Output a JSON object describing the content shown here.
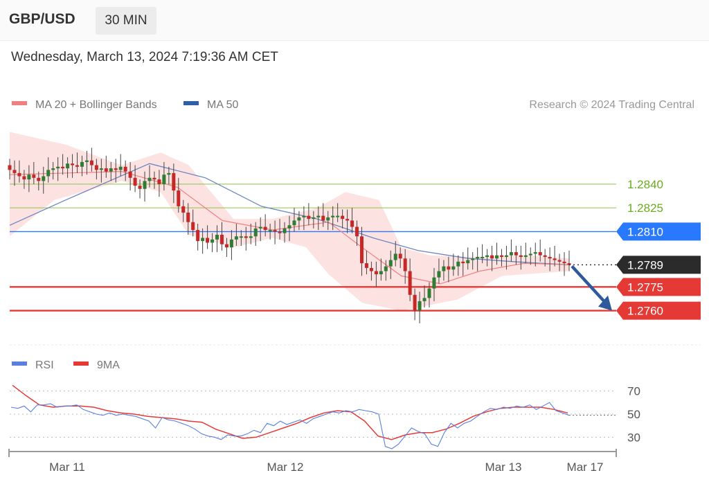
{
  "header": {
    "symbol": "GBP/USD",
    "timeframe": "30 MIN"
  },
  "date_line": "Wednesday, March 13, 2024 7:19:36 AM CET",
  "legend_main": [
    {
      "label": "MA 20 + Bollinger Bands",
      "color": "#f08080"
    },
    {
      "label": "MA 50",
      "color": "#2f5fa8"
    }
  ],
  "credit": "Research © 2024 Trading Central",
  "legend_rsi": [
    {
      "label": "RSI",
      "color": "#5b7fe0"
    },
    {
      "label": "9MA",
      "color": "#e53935"
    }
  ],
  "colors": {
    "up": "#2e7d32",
    "down": "#c62828",
    "band": "#fde2e2",
    "ma50": "#6b86c0",
    "ma20": "#f08080"
  },
  "chart_data": [
    {
      "type": "candlestick",
      "x_ticks": [
        "Mar 11",
        "Mar 12",
        "Mar 13",
        "Mar 17"
      ],
      "ylim": [
        1.2741,
        1.2882
      ],
      "last_price": "1.2789",
      "levels": [
        {
          "label": "1.2840",
          "value": 1.284,
          "kind": "resistance"
        },
        {
          "label": "1.2825",
          "value": 1.2825,
          "kind": "resistance"
        },
        {
          "label": "1.2810",
          "value": 1.281,
          "kind": "pivot"
        },
        {
          "label": "1.2775",
          "value": 1.2775,
          "kind": "support"
        },
        {
          "label": "1.2760",
          "value": 1.276,
          "kind": "support"
        }
      ],
      "closes": [
        1.2849,
        1.2847,
        1.2845,
        1.2843,
        1.2846,
        1.2844,
        1.2842,
        1.2845,
        1.2849,
        1.285,
        1.2851,
        1.285,
        1.2853,
        1.2852,
        1.2851,
        1.2854,
        1.2855,
        1.2852,
        1.2849,
        1.285,
        1.2848,
        1.285,
        1.2849,
        1.2851,
        1.2848,
        1.2844,
        1.2839,
        1.2837,
        1.2842,
        1.2844,
        1.2843,
        1.284,
        1.2846,
        1.2847,
        1.2836,
        1.2826,
        1.2822,
        1.2816,
        1.2811,
        1.2804,
        1.2806,
        1.2803,
        1.2805,
        1.2808,
        1.2802,
        1.28,
        1.2805,
        1.2807,
        1.2807,
        1.2806,
        1.2807,
        1.2812,
        1.2813,
        1.2811,
        1.2811,
        1.281,
        1.2809,
        1.2812,
        1.2814,
        1.2817,
        1.2819,
        1.282,
        1.2818,
        1.2819,
        1.282,
        1.2817,
        1.2819,
        1.282,
        1.282,
        1.2818,
        1.2817,
        1.2813,
        1.2807,
        1.279,
        1.2787,
        1.2785,
        1.2783,
        1.2785,
        1.2788,
        1.2792,
        1.2796,
        1.2793,
        1.2785,
        1.277,
        1.276,
        1.2766,
        1.2768,
        1.2774,
        1.2781,
        1.2785,
        1.2788,
        1.2786,
        1.2788,
        1.2791,
        1.279,
        1.2792,
        1.2793,
        1.2794,
        1.2794,
        1.2795,
        1.2793,
        1.2795,
        1.2794,
        1.2795,
        1.2797,
        1.2795,
        1.2794,
        1.2795,
        1.2796,
        1.2797,
        1.2795,
        1.2794,
        1.2793,
        1.2792,
        1.2791,
        1.279,
        1.2789
      ],
      "ma50": [
        [
          0.0,
          1.2814
        ],
        [
          0.1,
          1.283
        ],
        [
          0.25,
          1.2853
        ],
        [
          0.35,
          1.2844
        ],
        [
          0.45,
          1.2826
        ],
        [
          0.55,
          1.2818
        ],
        [
          0.65,
          1.2806
        ],
        [
          0.73,
          1.2798
        ],
        [
          0.82,
          1.2793
        ],
        [
          0.9,
          1.2791
        ],
        [
          1.0,
          1.2789
        ]
      ],
      "ma20": [
        [
          0.0,
          1.2846
        ],
        [
          0.2,
          1.2848
        ],
        [
          0.3,
          1.2838
        ],
        [
          0.38,
          1.2817
        ],
        [
          0.47,
          1.2811
        ],
        [
          0.57,
          1.2816
        ],
        [
          0.63,
          1.28
        ],
        [
          0.7,
          1.2782
        ],
        [
          0.77,
          1.2777
        ],
        [
          0.84,
          1.2785
        ],
        [
          0.92,
          1.279
        ],
        [
          1.0,
          1.2789
        ]
      ],
      "band_upper": [
        [
          0.0,
          1.2873
        ],
        [
          0.1,
          1.2865
        ],
        [
          0.2,
          1.2852
        ],
        [
          0.27,
          1.286
        ],
        [
          0.32,
          1.2852
        ],
        [
          0.4,
          1.2818
        ],
        [
          0.47,
          1.2818
        ],
        [
          0.55,
          1.2825
        ],
        [
          0.6,
          1.2835
        ],
        [
          0.66,
          1.283
        ],
        [
          0.7,
          1.28
        ],
        [
          0.75,
          1.2795
        ],
        [
          0.83,
          1.2794
        ],
        [
          0.92,
          1.2795
        ],
        [
          1.0,
          1.2793
        ]
      ],
      "band_lower": [
        [
          0.0,
          1.2807
        ],
        [
          0.08,
          1.283
        ],
        [
          0.2,
          1.2842
        ],
        [
          0.27,
          1.2835
        ],
        [
          0.32,
          1.2808
        ],
        [
          0.4,
          1.28
        ],
        [
          0.47,
          1.2806
        ],
        [
          0.53,
          1.28
        ],
        [
          0.57,
          1.2783
        ],
        [
          0.63,
          1.2765
        ],
        [
          0.7,
          1.276
        ],
        [
          0.8,
          1.2767
        ],
        [
          0.88,
          1.2782
        ],
        [
          1.0,
          1.2785
        ]
      ],
      "forecast_arrow_to": 1.276
    },
    {
      "type": "line",
      "name": "RSI",
      "ylim": [
        20,
        80
      ],
      "y_ticks": [
        "70",
        "50",
        "30"
      ],
      "rsi": [
        56,
        55,
        57,
        52,
        58,
        58,
        59,
        56,
        57,
        57,
        58,
        54,
        52,
        50,
        49,
        51,
        49,
        50,
        49,
        48,
        46,
        44,
        38,
        47,
        45,
        44,
        42,
        40,
        37,
        33,
        31,
        30,
        28,
        32,
        31,
        31,
        33,
        36,
        34,
        42,
        40,
        44,
        41,
        43,
        45,
        42,
        46,
        48,
        50,
        52,
        51,
        53,
        52,
        54,
        53,
        52,
        50,
        22,
        20,
        24,
        31,
        38,
        35,
        33,
        24,
        22,
        34,
        42,
        38,
        42,
        44,
        48,
        52,
        55,
        54,
        56,
        55,
        57,
        56,
        58,
        54,
        57,
        60,
        53,
        51,
        49
      ],
      "ma9": [
        75,
        66,
        58,
        56,
        57,
        57,
        56,
        53,
        51,
        50,
        48,
        47,
        46,
        44,
        43,
        37,
        33,
        29,
        30,
        34,
        38,
        42,
        47,
        51,
        53,
        52,
        44,
        31,
        28,
        32,
        34,
        34,
        37,
        42,
        48,
        52,
        55,
        56,
        56,
        56,
        54,
        51
      ]
    }
  ]
}
